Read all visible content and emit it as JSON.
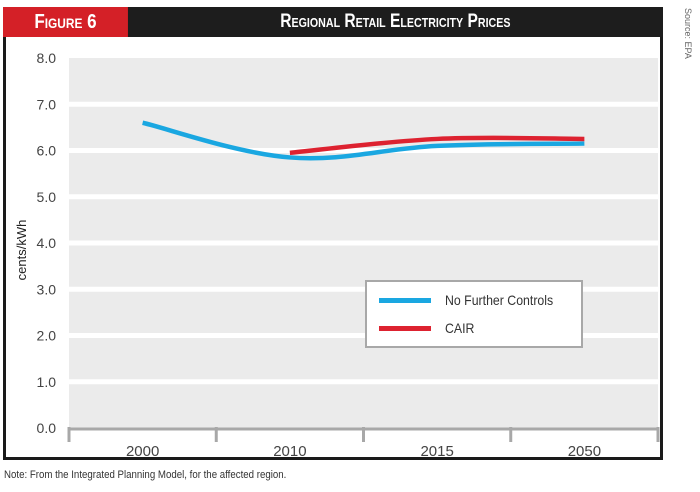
{
  "figure_label": "Figure 6",
  "source": "Source: EPA",
  "note": "Note: From the Integrated Planning Model, for the affected region.",
  "colors": {
    "figure_tag_bg": "#d42027",
    "header_bg": "#1d1d1d",
    "plot_bg": "#ebebeb",
    "axis": "#a8a8a8",
    "no_further_controls": "#1aa7e1",
    "cair": "#dd2230"
  },
  "chart_data": {
    "type": "line",
    "title": "Regional Retail Electricity Prices",
    "xlabel": "",
    "ylabel": "cents/kWh",
    "categories": [
      "2000",
      "2010",
      "2015",
      "2050"
    ],
    "ylim": [
      0,
      8
    ],
    "yticks": [
      "0.0",
      "1.0",
      "2.0",
      "3.0",
      "4.0",
      "5.0",
      "6.0",
      "7.0",
      "8.0"
    ],
    "grid": true,
    "legend_position": "center-right",
    "series": [
      {
        "name": "No Further Controls",
        "color": "#1aa7e1",
        "values": [
          6.6,
          5.85,
          6.1,
          6.15
        ]
      },
      {
        "name": "CAIR",
        "color": "#dd2230",
        "values": [
          null,
          5.95,
          6.25,
          6.25
        ]
      }
    ]
  }
}
